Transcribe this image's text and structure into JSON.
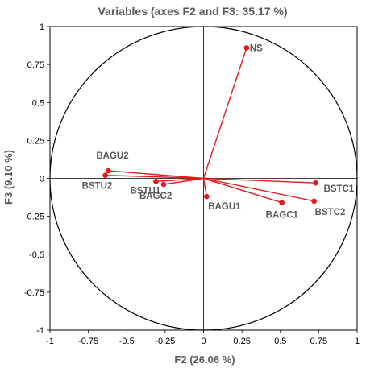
{
  "chart_data": {
    "type": "scatter",
    "subtype": "correlation-circle",
    "title": "Variables (axes F2 and F3: 35.17 %)",
    "xlabel": "F2 (26.06 %)",
    "ylabel": "F3 (9.10 %)",
    "xlim": [
      -1,
      1
    ],
    "ylim": [
      -1,
      1
    ],
    "x_ticks": [
      "-1",
      "-0.75",
      "-0.5",
      "-0.25",
      "0",
      "0.25",
      "0.5",
      "0.75",
      "1"
    ],
    "y_ticks": [
      "1",
      "0.75",
      "0.5",
      "0.25",
      "0",
      "-0.25",
      "-0.5",
      "-0.75",
      "-1"
    ],
    "grid": false,
    "unit_circle": true,
    "colors": {
      "vector": "#e31a1c",
      "circle": "#000000",
      "label": "#595959"
    },
    "points": [
      {
        "label": "NS",
        "x": 0.28,
        "y": 0.86
      },
      {
        "label": "BSTC1",
        "x": 0.73,
        "y": -0.03
      },
      {
        "label": "BSTC2",
        "x": 0.72,
        "y": -0.15
      },
      {
        "label": "BAGC1",
        "x": 0.51,
        "y": -0.16
      },
      {
        "label": "BAGU1",
        "x": 0.02,
        "y": -0.12
      },
      {
        "label": "BAGC2",
        "x": -0.26,
        "y": -0.04
      },
      {
        "label": "BSTU1",
        "x": -0.31,
        "y": -0.02
      },
      {
        "label": "BSTU2",
        "x": -0.64,
        "y": 0.02
      },
      {
        "label": "BAGU2",
        "x": -0.62,
        "y": 0.05
      }
    ]
  }
}
